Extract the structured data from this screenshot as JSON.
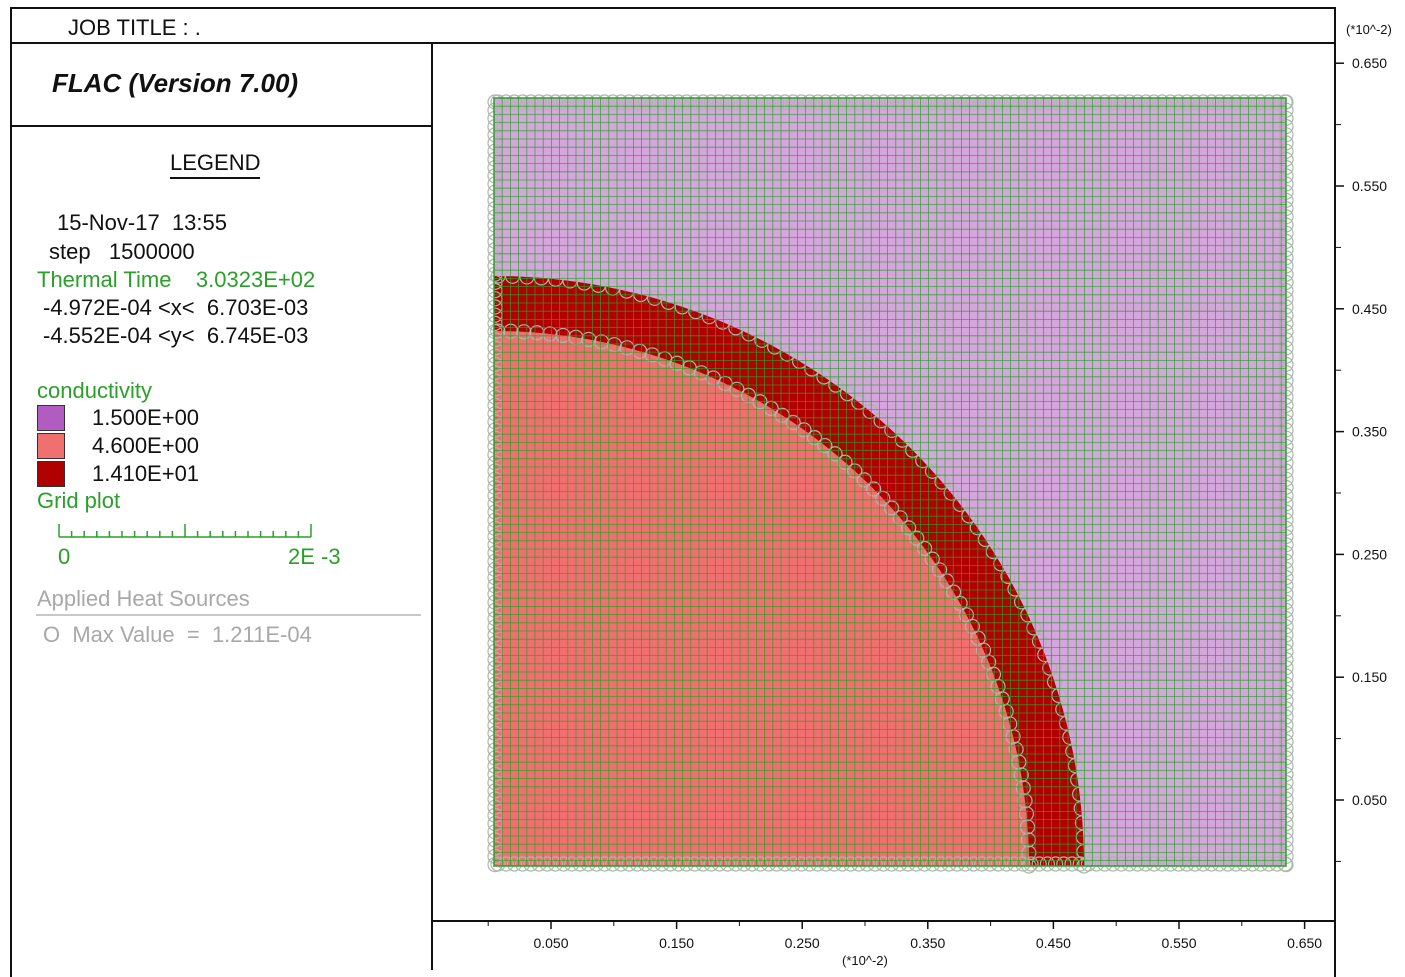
{
  "header": {
    "job_title": "JOB TITLE : ."
  },
  "legend": {
    "program": "FLAC (Version 7.00)",
    "heading": "LEGEND",
    "date_time": "15-Nov-17  13:55",
    "step": "step   1500000",
    "thermal_time": "Thermal Time    3.0323E+02",
    "x_range": "-4.972E-04 <x<  6.703E-03",
    "y_range": "-4.552E-04 <y<  6.745E-03",
    "conductivity_label": "conductivity",
    "conductivity_items": [
      {
        "value": "1.500E+00",
        "color": "#b05cc0"
      },
      {
        "value": "4.600E+00",
        "color": "#f07070"
      },
      {
        "value": "1.410E+01",
        "color": "#b00000"
      }
    ],
    "grid_plot_label": "Grid plot",
    "scale_min": "0",
    "scale_max": "2E -3",
    "heat_sources_label": "Applied Heat Sources",
    "max_value": "O  Max Value  =  1.211E-04"
  },
  "axes": {
    "x_unit": "(*10^-2)",
    "y_unit": "(*10^-2)",
    "x_ticks": [
      "0.050",
      "0.150",
      "0.250",
      "0.350",
      "0.450",
      "0.550",
      "0.650"
    ],
    "y_ticks": [
      "0.650",
      "0.550",
      "0.450",
      "0.350",
      "0.250",
      "0.150",
      "0.050"
    ]
  },
  "colors": {
    "grid_green": "#2aa02a",
    "outer_material": "#b05cc0",
    "inner_material": "#f07070",
    "ring_material": "#b00000",
    "heat_source_circle": "#aab8aa"
  }
}
